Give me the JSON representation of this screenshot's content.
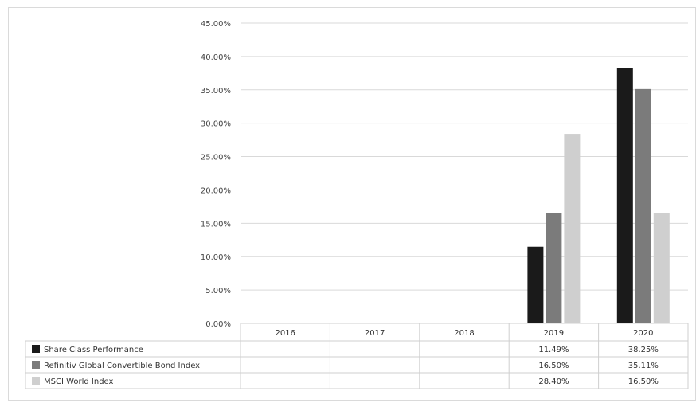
{
  "chart_data": {
    "type": "bar",
    "categories": [
      "2016",
      "2017",
      "2018",
      "2019",
      "2020"
    ],
    "ylim": [
      0,
      45
    ],
    "yticks": [
      "45.00%",
      "40.00%",
      "35.00%",
      "30.00%",
      "25.00%",
      "20.00%",
      "15.00%",
      "10.00%",
      "5.00%",
      "0.00%"
    ],
    "grid": true,
    "legend": "data-table",
    "series": [
      {
        "name": "Share Class Performance",
        "color": "#1a1a1a",
        "values": [
          null,
          null,
          null,
          11.49,
          38.25
        ],
        "labels": [
          "",
          "",
          "",
          "11.49%",
          "38.25%"
        ]
      },
      {
        "name": "Refinitiv Global Convertible Bond Index",
        "color": "#7b7b7b",
        "values": [
          null,
          null,
          null,
          16.5,
          35.11
        ],
        "labels": [
          "",
          "",
          "",
          "16.50%",
          "35.11%"
        ]
      },
      {
        "name": "MSCI World Index",
        "color": "#cfcfcf",
        "values": [
          null,
          null,
          null,
          28.4,
          16.5
        ],
        "labels": [
          "",
          "",
          "",
          "28.40%",
          "16.50%"
        ]
      }
    ]
  }
}
